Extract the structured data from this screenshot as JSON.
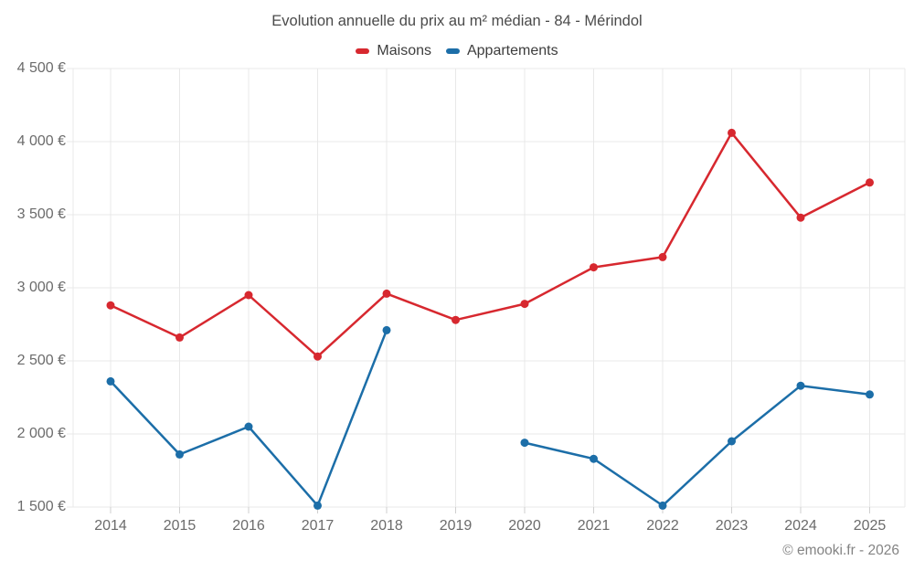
{
  "title": "Evolution annuelle du prix au m² médian - 84 - Mérindol",
  "legend": [
    {
      "label": "Maisons",
      "color": "#d7282f"
    },
    {
      "label": "Appartements",
      "color": "#1c6ea8"
    }
  ],
  "footer": "© emooki.fr - 2026",
  "colors": {
    "maisons": "#d7282f",
    "appartements": "#1c6ea8",
    "gridline": "#e8e8e8",
    "tick": "#cfcfcf",
    "axis_text": "#6b6b6b",
    "title_text": "#4a4a4a",
    "footer_text": "#848484"
  },
  "chart_data": {
    "type": "line",
    "title": "Evolution annuelle du prix au m² médian - 84 - Mérindol",
    "x": [
      2014,
      2015,
      2016,
      2017,
      2018,
      2019,
      2020,
      2021,
      2022,
      2023,
      2024,
      2025
    ],
    "series": [
      {
        "name": "Maisons",
        "color": "#d7282f",
        "values": [
          2880,
          2660,
          2950,
          2530,
          2960,
          2780,
          2890,
          3140,
          3210,
          4060,
          3480,
          3720
        ]
      },
      {
        "name": "Appartements",
        "color": "#1c6ea8",
        "values": [
          2360,
          1860,
          2050,
          1510,
          2710,
          null,
          1940,
          1830,
          1510,
          1950,
          2330,
          2270
        ]
      }
    ],
    "xlabel": "",
    "ylabel": "",
    "ylim": [
      1500,
      4500
    ],
    "yticks": [
      1500,
      2000,
      2500,
      3000,
      3500,
      4000,
      4500
    ],
    "ytick_labels": [
      "1 500 €",
      "2 000 €",
      "2 500 €",
      "3 000 €",
      "3 500 €",
      "4 000 €",
      "4 500 €"
    ],
    "grid": true,
    "legend_position": "top",
    "marker": "circle",
    "note": "Appartements series has no data point for 2019 (line gap)"
  }
}
